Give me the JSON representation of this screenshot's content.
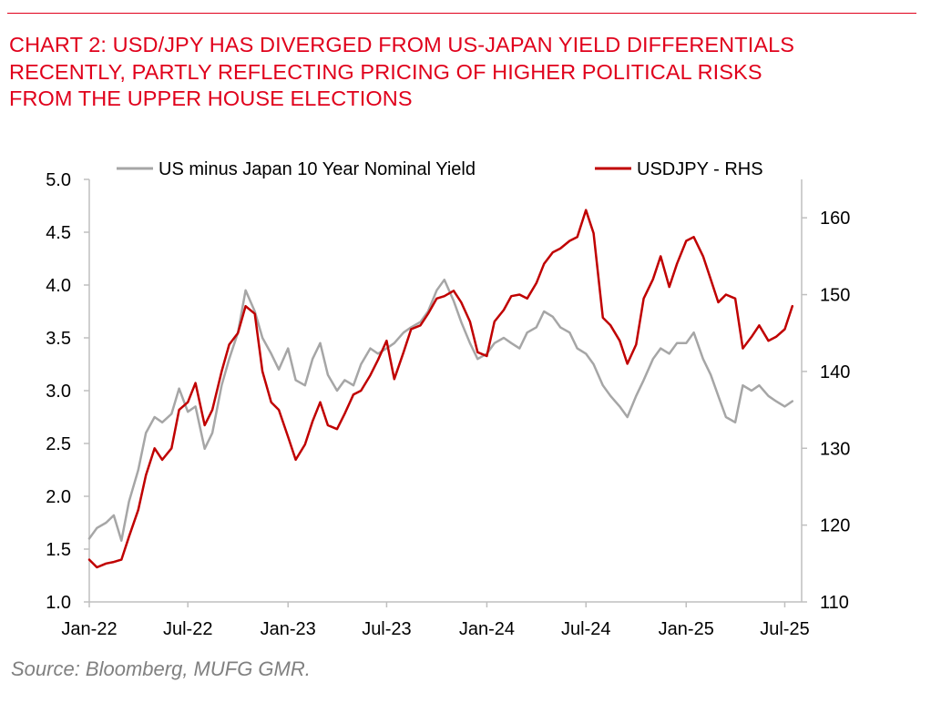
{
  "header": {
    "title_lines": [
      "CHART 2: USD/JPY HAS DIVERGED FROM US-JAPAN YIELD DIFFERENTIALS",
      "RECENTLY, PARTLY REFLECTING PRICING OF HIGHER POLITICAL RISKS",
      "FROM THE UPPER HOUSE ELECTIONS"
    ]
  },
  "footer": {
    "source": "Source: Bloomberg, MUFG GMR."
  },
  "colors": {
    "title": "#e0001b",
    "yield_series": "#a6a6a6",
    "usdjpy_series": "#c00000",
    "axis": "#bfbfbf",
    "source": "#808080"
  },
  "chart_data": {
    "type": "line",
    "title": "",
    "x_ticks": [
      "Jan-22",
      "Jul-22",
      "Jan-23",
      "Jul-23",
      "Jan-24",
      "Jul-24",
      "Jan-25",
      "Jul-25"
    ],
    "x_range": [
      "2022-01",
      "2025-08"
    ],
    "y_left": {
      "min": 1.0,
      "max": 5.0,
      "ticks": [
        "1.0",
        "1.5",
        "2.0",
        "2.5",
        "3.0",
        "3.5",
        "4.0",
        "4.5",
        "5.0"
      ]
    },
    "y_right": {
      "min": 110,
      "max": 165,
      "ticks": [
        "110",
        "120",
        "130",
        "140",
        "150",
        "160"
      ]
    },
    "grid": false,
    "legend_position": "top",
    "series": [
      {
        "name": "US minus Japan 10 Year Nominal Yield",
        "axis": "left",
        "points": [
          [
            "2022-01-01",
            1.6
          ],
          [
            "2022-01-15",
            1.7
          ],
          [
            "2022-02-01",
            1.75
          ],
          [
            "2022-02-15",
            1.82
          ],
          [
            "2022-03-01",
            1.58
          ],
          [
            "2022-03-15",
            1.95
          ],
          [
            "2022-04-01",
            2.25
          ],
          [
            "2022-04-15",
            2.6
          ],
          [
            "2022-05-01",
            2.75
          ],
          [
            "2022-05-15",
            2.7
          ],
          [
            "2022-06-01",
            2.78
          ],
          [
            "2022-06-15",
            3.02
          ],
          [
            "2022-07-01",
            2.8
          ],
          [
            "2022-07-15",
            2.85
          ],
          [
            "2022-08-01",
            2.45
          ],
          [
            "2022-08-15",
            2.6
          ],
          [
            "2022-09-01",
            3.05
          ],
          [
            "2022-09-15",
            3.3
          ],
          [
            "2022-10-01",
            3.55
          ],
          [
            "2022-10-15",
            3.95
          ],
          [
            "2022-11-01",
            3.75
          ],
          [
            "2022-11-15",
            3.5
          ],
          [
            "2022-12-01",
            3.35
          ],
          [
            "2022-12-15",
            3.2
          ],
          [
            "2023-01-01",
            3.4
          ],
          [
            "2023-01-15",
            3.1
          ],
          [
            "2023-02-01",
            3.05
          ],
          [
            "2023-02-15",
            3.3
          ],
          [
            "2023-03-01",
            3.45
          ],
          [
            "2023-03-15",
            3.15
          ],
          [
            "2023-04-01",
            3.0
          ],
          [
            "2023-04-15",
            3.1
          ],
          [
            "2023-05-01",
            3.05
          ],
          [
            "2023-05-15",
            3.25
          ],
          [
            "2023-06-01",
            3.4
          ],
          [
            "2023-06-15",
            3.35
          ],
          [
            "2023-07-01",
            3.4
          ],
          [
            "2023-07-15",
            3.45
          ],
          [
            "2023-08-01",
            3.55
          ],
          [
            "2023-08-15",
            3.6
          ],
          [
            "2023-09-01",
            3.65
          ],
          [
            "2023-09-15",
            3.75
          ],
          [
            "2023-10-01",
            3.95
          ],
          [
            "2023-10-15",
            4.05
          ],
          [
            "2023-11-01",
            3.85
          ],
          [
            "2023-11-15",
            3.65
          ],
          [
            "2023-12-01",
            3.45
          ],
          [
            "2023-12-15",
            3.3
          ],
          [
            "2024-01-01",
            3.35
          ],
          [
            "2024-01-15",
            3.45
          ],
          [
            "2024-02-01",
            3.5
          ],
          [
            "2024-02-15",
            3.45
          ],
          [
            "2024-03-01",
            3.4
          ],
          [
            "2024-03-15",
            3.55
          ],
          [
            "2024-04-01",
            3.6
          ],
          [
            "2024-04-15",
            3.75
          ],
          [
            "2024-05-01",
            3.7
          ],
          [
            "2024-05-15",
            3.6
          ],
          [
            "2024-06-01",
            3.55
          ],
          [
            "2024-06-15",
            3.4
          ],
          [
            "2024-07-01",
            3.35
          ],
          [
            "2024-07-15",
            3.25
          ],
          [
            "2024-08-01",
            3.05
          ],
          [
            "2024-08-15",
            2.95
          ],
          [
            "2024-09-01",
            2.85
          ],
          [
            "2024-09-15",
            2.75
          ],
          [
            "2024-10-01",
            2.95
          ],
          [
            "2024-10-15",
            3.1
          ],
          [
            "2024-11-01",
            3.3
          ],
          [
            "2024-11-15",
            3.4
          ],
          [
            "2024-12-01",
            3.35
          ],
          [
            "2024-12-15",
            3.45
          ],
          [
            "2025-01-01",
            3.45
          ],
          [
            "2025-01-15",
            3.55
          ],
          [
            "2025-02-01",
            3.3
          ],
          [
            "2025-02-15",
            3.15
          ],
          [
            "2025-03-01",
            2.95
          ],
          [
            "2025-03-15",
            2.75
          ],
          [
            "2025-04-01",
            2.7
          ],
          [
            "2025-04-15",
            3.05
          ],
          [
            "2025-05-01",
            3.0
          ],
          [
            "2025-05-15",
            3.05
          ],
          [
            "2025-06-01",
            2.95
          ],
          [
            "2025-06-15",
            2.9
          ],
          [
            "2025-07-01",
            2.85
          ],
          [
            "2025-07-15",
            2.9
          ]
        ]
      },
      {
        "name": "USDJPY - RHS",
        "axis": "right",
        "points": [
          [
            "2022-01-01",
            115.5
          ],
          [
            "2022-01-15",
            114.5
          ],
          [
            "2022-02-01",
            115
          ],
          [
            "2022-02-15",
            115.2
          ],
          [
            "2022-03-01",
            115.5
          ],
          [
            "2022-03-15",
            118.5
          ],
          [
            "2022-04-01",
            122
          ],
          [
            "2022-04-15",
            126.5
          ],
          [
            "2022-05-01",
            130
          ],
          [
            "2022-05-15",
            128.5
          ],
          [
            "2022-06-01",
            130
          ],
          [
            "2022-06-15",
            135
          ],
          [
            "2022-07-01",
            136
          ],
          [
            "2022-07-15",
            138.5
          ],
          [
            "2022-08-01",
            133
          ],
          [
            "2022-08-15",
            135
          ],
          [
            "2022-09-01",
            140
          ],
          [
            "2022-09-15",
            143.5
          ],
          [
            "2022-10-01",
            145
          ],
          [
            "2022-10-15",
            148.5
          ],
          [
            "2022-11-01",
            147.5
          ],
          [
            "2022-11-15",
            140
          ],
          [
            "2022-12-01",
            136
          ],
          [
            "2022-12-15",
            135
          ],
          [
            "2023-01-01",
            131.5
          ],
          [
            "2023-01-15",
            128.5
          ],
          [
            "2023-02-01",
            130.5
          ],
          [
            "2023-02-15",
            133.5
          ],
          [
            "2023-03-01",
            136
          ],
          [
            "2023-03-15",
            133
          ],
          [
            "2023-04-01",
            132.5
          ],
          [
            "2023-04-15",
            134.5
          ],
          [
            "2023-05-01",
            137
          ],
          [
            "2023-05-15",
            137.5
          ],
          [
            "2023-06-01",
            139.5
          ],
          [
            "2023-06-15",
            141.5
          ],
          [
            "2023-07-01",
            144
          ],
          [
            "2023-07-15",
            139
          ],
          [
            "2023-08-01",
            142.5
          ],
          [
            "2023-08-15",
            145.5
          ],
          [
            "2023-09-01",
            146
          ],
          [
            "2023-09-15",
            147.5
          ],
          [
            "2023-10-01",
            149.5
          ],
          [
            "2023-10-15",
            149.8
          ],
          [
            "2023-11-01",
            150.5
          ],
          [
            "2023-11-15",
            149
          ],
          [
            "2023-12-01",
            146.5
          ],
          [
            "2023-12-15",
            142.5
          ],
          [
            "2024-01-01",
            142
          ],
          [
            "2024-01-15",
            146.5
          ],
          [
            "2024-02-01",
            148
          ],
          [
            "2024-02-15",
            149.8
          ],
          [
            "2024-03-01",
            150
          ],
          [
            "2024-03-15",
            149.5
          ],
          [
            "2024-04-01",
            151.5
          ],
          [
            "2024-04-15",
            154
          ],
          [
            "2024-05-01",
            155.5
          ],
          [
            "2024-05-15",
            156
          ],
          [
            "2024-06-01",
            157
          ],
          [
            "2024-06-15",
            157.5
          ],
          [
            "2024-07-01",
            161
          ],
          [
            "2024-07-15",
            158
          ],
          [
            "2024-08-01",
            147
          ],
          [
            "2024-08-15",
            146
          ],
          [
            "2024-09-01",
            144
          ],
          [
            "2024-09-15",
            141
          ],
          [
            "2024-10-01",
            143.5
          ],
          [
            "2024-10-15",
            149.5
          ],
          [
            "2024-11-01",
            152
          ],
          [
            "2024-11-15",
            155
          ],
          [
            "2024-12-01",
            151
          ],
          [
            "2024-12-15",
            154
          ],
          [
            "2025-01-01",
            157
          ],
          [
            "2025-01-15",
            157.5
          ],
          [
            "2025-02-01",
            155
          ],
          [
            "2025-02-15",
            152
          ],
          [
            "2025-03-01",
            149
          ],
          [
            "2025-03-15",
            150
          ],
          [
            "2025-04-01",
            149.5
          ],
          [
            "2025-04-15",
            143
          ],
          [
            "2025-05-01",
            144.5
          ],
          [
            "2025-05-15",
            146
          ],
          [
            "2025-06-01",
            144
          ],
          [
            "2025-06-15",
            144.5
          ],
          [
            "2025-07-01",
            145.5
          ],
          [
            "2025-07-15",
            148.5
          ]
        ]
      }
    ]
  }
}
